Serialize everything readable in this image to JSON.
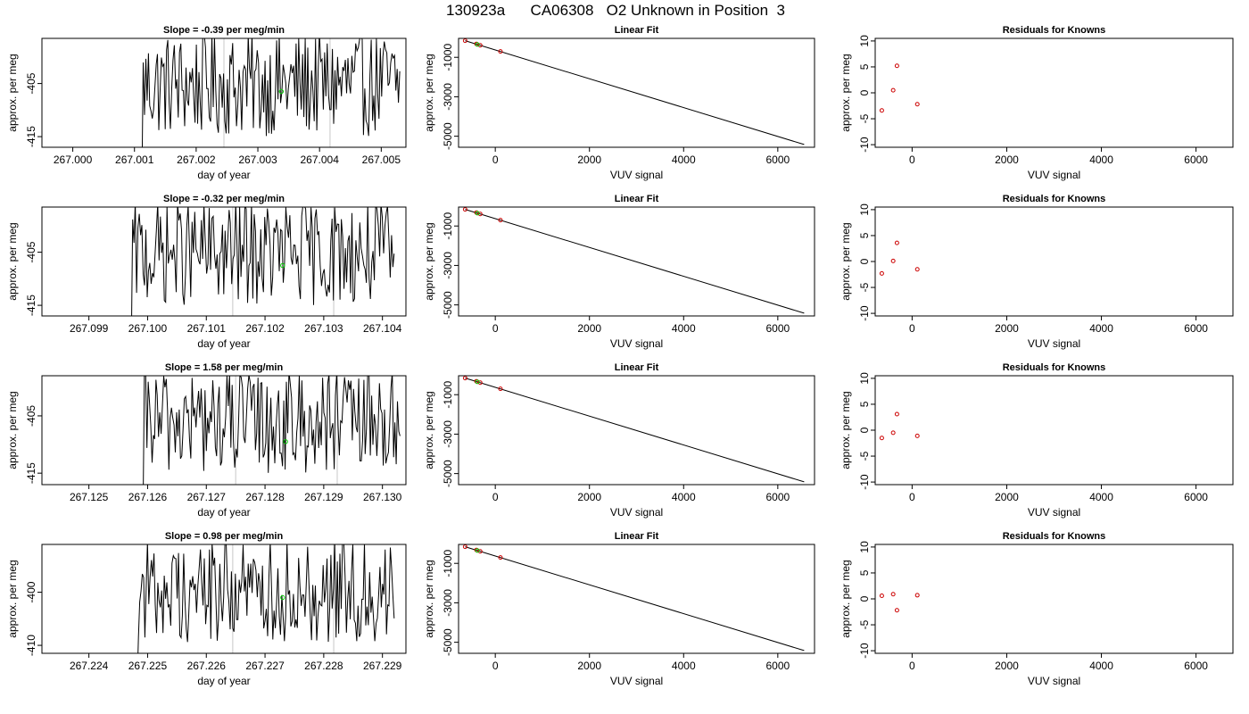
{
  "page_title": "130923a      CA06308   O2 Unknown in Position  3",
  "colors": {
    "line": "#000000",
    "unknown_marker": "#00cc00",
    "known_marker": "#cc0000",
    "vertical_marker": "#c8c8c8"
  },
  "chart_data": [
    {
      "type": "line",
      "row": 1,
      "panel": "time-series",
      "title": "Slope =  -0.39  per meg/min",
      "xlabel": "day of year",
      "ylabel": "approx. per meg",
      "xlim": [
        266.9995,
        267.0054
      ],
      "ylim": [
        -417,
        -396.5
      ],
      "xticks": [
        267.0,
        267.001,
        267.002,
        267.003,
        267.004,
        267.005
      ],
      "xtick_labels": [
        "267.000",
        "267.001",
        "267.002",
        "267.003",
        "267.004",
        "267.005"
      ],
      "yticks": [
        -405,
        -415
      ],
      "ytick_labels": [
        "-405",
        "-415"
      ],
      "series_x_range": [
        267.0011,
        267.0053
      ],
      "vlines": [
        267.00245,
        267.00417
      ],
      "marker": {
        "x": 267.00338,
        "y": -406.5
      }
    },
    {
      "type": "scatter",
      "row": 1,
      "panel": "linear-fit",
      "title": "Linear Fit",
      "xlabel": "VUV signal",
      "ylabel": "approx. per meg",
      "xlim": [
        -780,
        6780
      ],
      "ylim": [
        -5560,
        -40
      ],
      "xticks": [
        0,
        2000,
        4000,
        6000
      ],
      "xtick_labels": [
        "0",
        "2000",
        "4000",
        "6000"
      ],
      "yticks": [
        -1000,
        -3000,
        -5000
      ],
      "ytick_labels": [
        "-1000",
        "-3000",
        "-5000"
      ],
      "fit_line": {
        "x": [
          -640,
          6560
        ],
        "y": [
          -160,
          -5420
        ]
      },
      "known_points": [
        {
          "x": -640,
          "y": -160
        },
        {
          "x": -400,
          "y": -320
        },
        {
          "x": -320,
          "y": -390
        },
        {
          "x": 110,
          "y": -700
        }
      ],
      "unknown_points": [
        {
          "x": -380,
          "y": -350
        }
      ]
    },
    {
      "type": "scatter",
      "row": 1,
      "panel": "residuals",
      "title": "Residuals for Knowns",
      "xlabel": "VUV signal",
      "ylabel": "approx. per meg",
      "xlim": [
        -780,
        6780
      ],
      "ylim": [
        -10.5,
        10.5
      ],
      "xticks": [
        0,
        2000,
        4000,
        6000
      ],
      "xtick_labels": [
        "0",
        "2000",
        "4000",
        "6000"
      ],
      "yticks": [
        10,
        5,
        0,
        -5,
        -10
      ],
      "ytick_labels": [
        "10",
        "5",
        "0",
        "-5",
        "-10"
      ],
      "points": [
        {
          "x": -640,
          "y": -3.4
        },
        {
          "x": -400,
          "y": 0.5
        },
        {
          "x": -320,
          "y": 5.2
        },
        {
          "x": 110,
          "y": -2.2
        }
      ]
    },
    {
      "type": "line",
      "row": 2,
      "panel": "time-series",
      "title": "Slope =  -0.32  per meg/min",
      "xlabel": "day of year",
      "ylabel": "approx. per meg",
      "xlim": [
        267.0982,
        267.1044
      ],
      "ylim": [
        -417,
        -396.5
      ],
      "xticks": [
        267.099,
        267.1,
        267.101,
        267.102,
        267.103,
        267.104
      ],
      "xtick_labels": [
        "267.099",
        "267.100",
        "267.101",
        "267.102",
        "267.103",
        "267.104"
      ],
      "yticks": [
        -405,
        -415
      ],
      "ytick_labels": [
        "-405",
        "-415"
      ],
      "series_x_range": [
        267.0997,
        267.1042
      ],
      "vlines": [
        267.10145,
        267.10317
      ],
      "marker": {
        "x": 267.1023,
        "y": -407.5
      }
    },
    {
      "type": "scatter",
      "row": 2,
      "panel": "linear-fit",
      "title": "Linear Fit",
      "xlabel": "VUV signal",
      "ylabel": "approx. per meg",
      "xlim": [
        -780,
        6780
      ],
      "ylim": [
        -5560,
        -40
      ],
      "xticks": [
        0,
        2000,
        4000,
        6000
      ],
      "xtick_labels": [
        "0",
        "2000",
        "4000",
        "6000"
      ],
      "yticks": [
        -1000,
        -3000,
        -5000
      ],
      "ytick_labels": [
        "-1000",
        "-3000",
        "-5000"
      ],
      "fit_line": {
        "x": [
          -640,
          6560
        ],
        "y": [
          -160,
          -5420
        ]
      },
      "known_points": [
        {
          "x": -640,
          "y": -160
        },
        {
          "x": -400,
          "y": -320
        },
        {
          "x": -320,
          "y": -390
        },
        {
          "x": 110,
          "y": -700
        }
      ],
      "unknown_points": [
        {
          "x": -380,
          "y": -350
        }
      ]
    },
    {
      "type": "scatter",
      "row": 2,
      "panel": "residuals",
      "title": "Residuals for Knowns",
      "xlabel": "VUV signal",
      "ylabel": "approx. per meg",
      "xlim": [
        -780,
        6780
      ],
      "ylim": [
        -10.5,
        10.5
      ],
      "xticks": [
        0,
        2000,
        4000,
        6000
      ],
      "xtick_labels": [
        "0",
        "2000",
        "4000",
        "6000"
      ],
      "yticks": [
        10,
        5,
        0,
        -5,
        -10
      ],
      "ytick_labels": [
        "10",
        "5",
        "0",
        "-5",
        "-10"
      ],
      "points": [
        {
          "x": -640,
          "y": -2.3
        },
        {
          "x": -400,
          "y": 0.1
        },
        {
          "x": -320,
          "y": 3.6
        },
        {
          "x": 110,
          "y": -1.5
        }
      ]
    },
    {
      "type": "line",
      "row": 3,
      "panel": "time-series",
      "title": "Slope =  1.58  per meg/min",
      "xlabel": "day of year",
      "ylabel": "approx. per meg",
      "xlim": [
        267.1242,
        267.1304
      ],
      "ylim": [
        -417,
        -398
      ],
      "xticks": [
        267.125,
        267.126,
        267.127,
        267.128,
        267.129,
        267.13
      ],
      "xtick_labels": [
        "267.125",
        "267.126",
        "267.127",
        "267.128",
        "267.129",
        "267.130"
      ],
      "yticks": [
        -405,
        -415
      ],
      "ytick_labels": [
        "-405",
        "-415"
      ],
      "series_x_range": [
        267.1259,
        267.1303
      ],
      "vlines": [
        267.1275,
        267.12923
      ],
      "marker": {
        "x": 267.12835,
        "y": -409.5
      }
    },
    {
      "type": "scatter",
      "row": 3,
      "panel": "linear-fit",
      "title": "Linear Fit",
      "xlabel": "VUV signal",
      "ylabel": "approx. per meg",
      "xlim": [
        -780,
        6780
      ],
      "ylim": [
        -5560,
        -40
      ],
      "xticks": [
        0,
        2000,
        4000,
        6000
      ],
      "xtick_labels": [
        "0",
        "2000",
        "4000",
        "6000"
      ],
      "yticks": [
        -1000,
        -3000,
        -5000
      ],
      "ytick_labels": [
        "-1000",
        "-3000",
        "-5000"
      ],
      "fit_line": {
        "x": [
          -640,
          6560
        ],
        "y": [
          -160,
          -5420
        ]
      },
      "known_points": [
        {
          "x": -640,
          "y": -160
        },
        {
          "x": -400,
          "y": -320
        },
        {
          "x": -320,
          "y": -390
        },
        {
          "x": 110,
          "y": -700
        }
      ],
      "unknown_points": [
        {
          "x": -380,
          "y": -350
        }
      ]
    },
    {
      "type": "scatter",
      "row": 3,
      "panel": "residuals",
      "title": "Residuals for Knowns",
      "xlabel": "VUV signal",
      "ylabel": "approx. per meg",
      "xlim": [
        -780,
        6780
      ],
      "ylim": [
        -10.5,
        10.5
      ],
      "xticks": [
        0,
        2000,
        4000,
        6000
      ],
      "xtick_labels": [
        "0",
        "2000",
        "4000",
        "6000"
      ],
      "yticks": [
        10,
        5,
        0,
        -5,
        -10
      ],
      "ytick_labels": [
        "10",
        "5",
        "0",
        "-5",
        "-10"
      ],
      "points": [
        {
          "x": -640,
          "y": -1.5
        },
        {
          "x": -400,
          "y": -0.5
        },
        {
          "x": -320,
          "y": 3.1
        },
        {
          "x": 110,
          "y": -1.1
        }
      ]
    },
    {
      "type": "line",
      "row": 4,
      "panel": "time-series",
      "title": "Slope =  0.98  per meg/min",
      "xlabel": "day of year",
      "ylabel": "approx. per meg",
      "xlim": [
        267.2232,
        267.2294
      ],
      "ylim": [
        -411.5,
        -391
      ],
      "xticks": [
        267.224,
        267.225,
        267.226,
        267.227,
        267.228,
        267.229
      ],
      "xtick_labels": [
        "267.224",
        "267.225",
        "267.226",
        "267.227",
        "267.228",
        "267.229"
      ],
      "yticks": [
        -400,
        -410
      ],
      "ytick_labels": [
        "-400",
        "-410"
      ],
      "series_x_range": [
        267.2248,
        267.2292
      ],
      "vlines": [
        267.22645,
        267.22817
      ],
      "marker": {
        "x": 267.2273,
        "y": -401.0
      }
    },
    {
      "type": "scatter",
      "row": 4,
      "panel": "linear-fit",
      "title": "Linear Fit",
      "xlabel": "VUV signal",
      "ylabel": "approx. per meg",
      "xlim": [
        -780,
        6780
      ],
      "ylim": [
        -5560,
        -40
      ],
      "xticks": [
        0,
        2000,
        4000,
        6000
      ],
      "xtick_labels": [
        "0",
        "2000",
        "4000",
        "6000"
      ],
      "yticks": [
        -1000,
        -3000,
        -5000
      ],
      "ytick_labels": [
        "-1000",
        "-3000",
        "-5000"
      ],
      "fit_line": {
        "x": [
          -640,
          6560
        ],
        "y": [
          -160,
          -5420
        ]
      },
      "known_points": [
        {
          "x": -640,
          "y": -160
        },
        {
          "x": -400,
          "y": -320
        },
        {
          "x": -320,
          "y": -390
        },
        {
          "x": 110,
          "y": -700
        }
      ],
      "unknown_points": [
        {
          "x": -380,
          "y": -350
        }
      ]
    },
    {
      "type": "scatter",
      "row": 4,
      "panel": "residuals",
      "title": "Residuals for Knowns",
      "xlabel": "VUV signal",
      "ylabel": "approx. per meg",
      "xlim": [
        -780,
        6780
      ],
      "ylim": [
        -10.5,
        10.5
      ],
      "xticks": [
        0,
        2000,
        4000,
        6000
      ],
      "xtick_labels": [
        "0",
        "2000",
        "4000",
        "6000"
      ],
      "yticks": [
        10,
        5,
        0,
        -5,
        -10
      ],
      "ytick_labels": [
        "10",
        "5",
        "0",
        "-5",
        "-10"
      ],
      "points": [
        {
          "x": -640,
          "y": 0.6
        },
        {
          "x": -400,
          "y": 0.9
        },
        {
          "x": -320,
          "y": -2.2
        },
        {
          "x": 110,
          "y": 0.7
        }
      ]
    }
  ]
}
